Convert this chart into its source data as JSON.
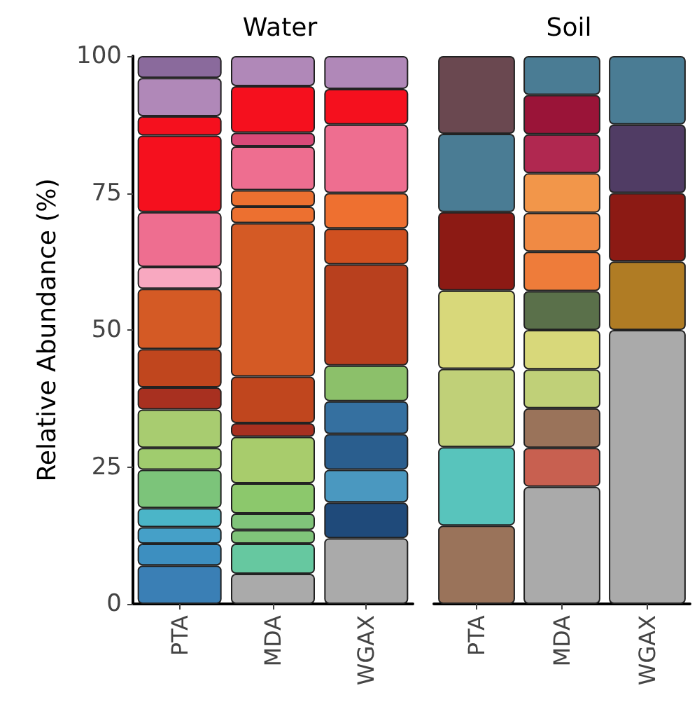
{
  "chart_data": [
    {
      "type": "bar",
      "stacked": true,
      "title": "Water",
      "ylabel": "Relative Abundance (%)",
      "categories": [
        "PTA",
        "MDA",
        "WGAX"
      ],
      "ylim": [
        0,
        100
      ],
      "yticks": [
        0,
        25,
        50,
        75,
        100
      ],
      "series": [
        {
          "color": "#3a7fb5",
          "values": [
            7,
            null,
            null
          ]
        },
        {
          "color": "#3d8fc0",
          "values": [
            4,
            null,
            null
          ]
        },
        {
          "color": "#45a0c8",
          "values": [
            3,
            null,
            null
          ]
        },
        {
          "color": "#4bb5c8",
          "values": [
            3.5,
            null,
            null
          ]
        },
        {
          "color": "#7cc47a",
          "values": [
            7,
            null,
            null
          ]
        },
        {
          "color": "#a0cc6e",
          "values": [
            4,
            null,
            null
          ]
        },
        {
          "color": "#a8cc70",
          "values": [
            7,
            null,
            null
          ]
        },
        {
          "color": "#a83020",
          "values": [
            4,
            null,
            null
          ]
        },
        {
          "color": "#c0461e",
          "values": [
            7,
            null,
            null
          ]
        },
        {
          "color": "#d45a25",
          "values": [
            11,
            null,
            null
          ]
        },
        {
          "color": "#f8a8c0",
          "values": [
            4,
            null,
            null
          ]
        },
        {
          "color": "#ee6e90",
          "values": [
            10,
            null,
            null
          ]
        },
        {
          "color": "#f5101e",
          "values": [
            14,
            null,
            null
          ]
        },
        {
          "color": "#f5101e",
          "values": [
            3.5,
            null,
            null
          ]
        },
        {
          "color": "#b088b8",
          "values": [
            7,
            null,
            null
          ]
        },
        {
          "color": "#8a6a9c",
          "values": [
            4,
            null,
            null
          ]
        },
        {
          "color": "#aaaaaa",
          "values": [
            null,
            5.5,
            null
          ]
        },
        {
          "color": "#66c8a0",
          "values": [
            null,
            5.5,
            null
          ]
        },
        {
          "color": "#80c47a",
          "values": [
            null,
            2.5,
            null
          ]
        },
        {
          "color": "#80c47a",
          "values": [
            null,
            3,
            null
          ]
        },
        {
          "color": "#8cc86c",
          "values": [
            null,
            5.5,
            null
          ]
        },
        {
          "color": "#a8cc6c",
          "values": [
            null,
            8.5,
            null
          ]
        },
        {
          "color": "#a83020",
          "values": [
            null,
            2.5,
            null
          ]
        },
        {
          "color": "#c0461e",
          "values": [
            null,
            8.5,
            null
          ]
        },
        {
          "color": "#d45a25",
          "values": [
            null,
            28,
            null
          ]
        },
        {
          "color": "#ec7030",
          "values": [
            null,
            3,
            null
          ]
        },
        {
          "color": "#ec7030",
          "values": [
            null,
            3,
            null
          ]
        },
        {
          "color": "#ee6e90",
          "values": [
            null,
            8,
            null
          ]
        },
        {
          "color": "#d84a78",
          "values": [
            null,
            2.5,
            null
          ]
        },
        {
          "color": "#f5101e",
          "values": [
            null,
            8.5,
            null
          ]
        },
        {
          "color": "#b088b8",
          "values": [
            null,
            5.5,
            null
          ]
        },
        {
          "color": "#aaaaaa",
          "values": [
            null,
            null,
            12
          ]
        },
        {
          "color": "#1f4a7a",
          "values": [
            null,
            null,
            6.5
          ]
        },
        {
          "color": "#4a98c0",
          "values": [
            null,
            null,
            6
          ]
        },
        {
          "color": "#2a5e8e",
          "values": [
            null,
            null,
            6.5
          ]
        },
        {
          "color": "#3570a0",
          "values": [
            null,
            null,
            6
          ]
        },
        {
          "color": "#8cc06a",
          "values": [
            null,
            null,
            6.5
          ]
        },
        {
          "color": "#b8401e",
          "values": [
            null,
            null,
            18.5
          ]
        },
        {
          "color": "#d05020",
          "values": [
            null,
            null,
            6.5
          ]
        },
        {
          "color": "#ee7030",
          "values": [
            null,
            null,
            6.5
          ]
        },
        {
          "color": "#ee6e90",
          "values": [
            null,
            null,
            12.5
          ]
        },
        {
          "color": "#f5101e",
          "values": [
            null,
            null,
            6.5
          ]
        },
        {
          "color": "#b088b8",
          "values": [
            null,
            null,
            6
          ]
        }
      ]
    },
    {
      "type": "bar",
      "stacked": true,
      "title": "Soil",
      "categories": [
        "PTA",
        "MDA",
        "WGAX"
      ],
      "ylim": [
        0,
        100
      ],
      "yticks": [
        0,
        25,
        50,
        75,
        100
      ],
      "tick_labels": "x",
      "series": [
        {
          "color": "#9a735a",
          "values": [
            14.3,
            null,
            null
          ]
        },
        {
          "color": "#58c4bc",
          "values": [
            14.3,
            null,
            null
          ]
        },
        {
          "color": "#c0d078",
          "values": [
            14.3,
            null,
            null
          ]
        },
        {
          "color": "#d8d87a",
          "values": [
            14.3,
            null,
            null
          ]
        },
        {
          "color": "#8c1a14",
          "values": [
            14.3,
            null,
            null
          ]
        },
        {
          "color": "#4a7c94",
          "values": [
            14.3,
            null,
            null
          ]
        },
        {
          "color": "#6a4850",
          "values": [
            14.2,
            null,
            null
          ]
        },
        {
          "color": "#aaaaaa",
          "values": [
            null,
            21.4,
            null
          ]
        },
        {
          "color": "#c86050",
          "values": [
            null,
            7.1,
            null
          ]
        },
        {
          "color": "#9a735a",
          "values": [
            null,
            7.2,
            null
          ]
        },
        {
          "color": "#c0d078",
          "values": [
            null,
            7.1,
            null
          ]
        },
        {
          "color": "#d8d87a",
          "values": [
            null,
            7.2,
            null
          ]
        },
        {
          "color": "#5a704a",
          "values": [
            null,
            7.1,
            null
          ]
        },
        {
          "color": "#ee7c3a",
          "values": [
            null,
            7.2,
            null
          ]
        },
        {
          "color": "#f08a44",
          "values": [
            null,
            7.1,
            null
          ]
        },
        {
          "color": "#f2964a",
          "values": [
            null,
            7.2,
            null
          ]
        },
        {
          "color": "#b02850",
          "values": [
            null,
            7.1,
            null
          ]
        },
        {
          "color": "#9a1438",
          "values": [
            null,
            7.2,
            null
          ]
        },
        {
          "color": "#4a7c94",
          "values": [
            null,
            7.1,
            null
          ]
        },
        {
          "color": "#aaaaaa",
          "values": [
            null,
            null,
            50
          ]
        },
        {
          "color": "#b07c24",
          "values": [
            null,
            null,
            12.5
          ]
        },
        {
          "color": "#8c1a14",
          "values": [
            null,
            null,
            12.5
          ]
        },
        {
          "color": "#503c64",
          "values": [
            null,
            null,
            12.5
          ]
        },
        {
          "color": "#4a7c94",
          "values": [
            null,
            null,
            12.5
          ]
        }
      ]
    }
  ]
}
